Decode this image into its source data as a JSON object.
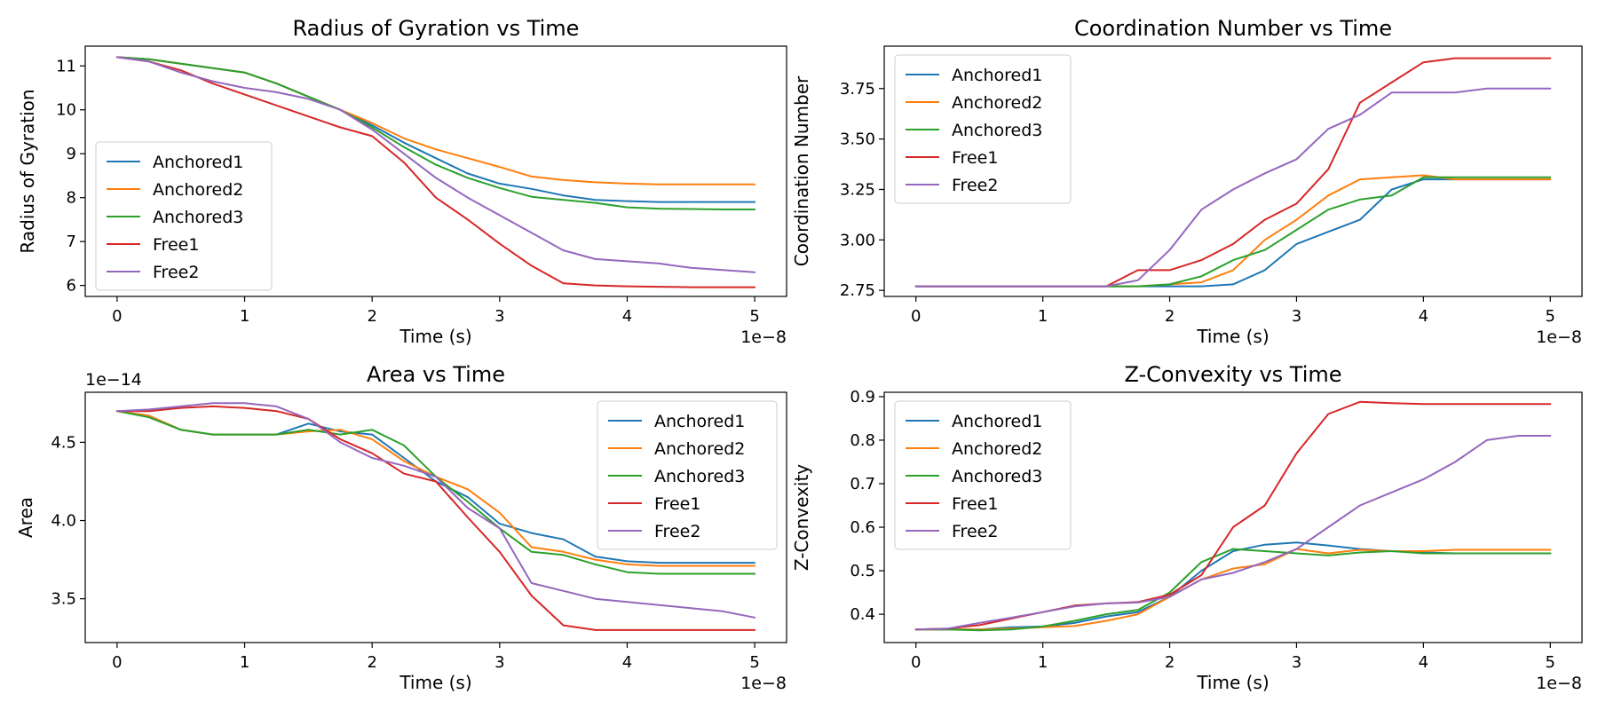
{
  "series_colors": {
    "Anchored1": "#1f77b4",
    "Anchored2": "#ff7f0e",
    "Anchored3": "#2ca02c",
    "Free1": "#d62728",
    "Free2": "#9467bd"
  },
  "chart_data": [
    {
      "type": "line",
      "title": "Radius of Gyration vs Time",
      "xlabel": "Time (s)",
      "ylabel": "Radius of Gyration",
      "x_offset_label": "1e−8",
      "y_offset_label": "",
      "xlim": [
        -0.25,
        5.25
      ],
      "ylim": [
        5.75,
        11.45
      ],
      "xticks": [
        0,
        1,
        2,
        3,
        4,
        5
      ],
      "xticklabels": [
        "0",
        "1",
        "2",
        "3",
        "4",
        "5"
      ],
      "yticks": [
        6,
        7,
        8,
        9,
        10,
        11
      ],
      "yticklabels": [
        "6",
        "7",
        "8",
        "9",
        "10",
        "11"
      ],
      "legend_position": "center-left",
      "grid": false,
      "x": [
        0,
        0.25,
        0.5,
        0.75,
        1.0,
        1.25,
        1.5,
        1.75,
        2.0,
        2.25,
        2.5,
        2.75,
        3.0,
        3.25,
        3.5,
        3.75,
        4.0,
        4.25,
        4.5,
        4.75,
        5.0
      ],
      "series": [
        {
          "name": "Anchored1",
          "values": [
            11.2,
            11.15,
            11.05,
            10.95,
            10.85,
            10.6,
            10.3,
            10.0,
            9.65,
            9.25,
            8.9,
            8.55,
            8.32,
            8.2,
            8.05,
            7.95,
            7.92,
            7.9,
            7.9,
            7.9,
            7.9
          ]
        },
        {
          "name": "Anchored2",
          "values": [
            11.2,
            11.15,
            11.05,
            10.95,
            10.85,
            10.6,
            10.3,
            10.0,
            9.7,
            9.35,
            9.1,
            8.9,
            8.7,
            8.48,
            8.4,
            8.35,
            8.32,
            8.3,
            8.3,
            8.3,
            8.3
          ]
        },
        {
          "name": "Anchored3",
          "values": [
            11.2,
            11.15,
            11.05,
            10.95,
            10.85,
            10.6,
            10.3,
            10.0,
            9.6,
            9.15,
            8.75,
            8.45,
            8.22,
            8.02,
            7.95,
            7.88,
            7.78,
            7.75,
            7.74,
            7.73,
            7.73
          ]
        },
        {
          "name": "Free1",
          "values": [
            11.2,
            11.1,
            10.9,
            10.6,
            10.35,
            10.1,
            9.85,
            9.6,
            9.4,
            8.8,
            8.0,
            7.5,
            6.95,
            6.45,
            6.05,
            6.0,
            5.98,
            5.97,
            5.96,
            5.96,
            5.96
          ]
        },
        {
          "name": "Free2",
          "values": [
            11.2,
            11.1,
            10.85,
            10.65,
            10.5,
            10.4,
            10.25,
            10.0,
            9.55,
            9.0,
            8.45,
            8.0,
            7.6,
            7.2,
            6.8,
            6.6,
            6.55,
            6.5,
            6.4,
            6.35,
            6.3
          ]
        }
      ]
    },
    {
      "type": "line",
      "title": "Coordination Number vs Time",
      "xlabel": "Time (s)",
      "ylabel": "Coordination Number",
      "x_offset_label": "1e−8",
      "y_offset_label": "",
      "xlim": [
        -0.25,
        5.25
      ],
      "ylim": [
        2.72,
        3.96
      ],
      "xticks": [
        0,
        1,
        2,
        3,
        4,
        5
      ],
      "xticklabels": [
        "0",
        "1",
        "2",
        "3",
        "4",
        "5"
      ],
      "yticks": [
        2.75,
        3.0,
        3.25,
        3.5,
        3.75
      ],
      "yticklabels": [
        "2.75",
        "3.00",
        "3.25",
        "3.50",
        "3.75"
      ],
      "legend_position": "upper-left",
      "grid": false,
      "x": [
        0,
        1.5,
        1.75,
        2.0,
        2.25,
        2.5,
        2.75,
        3.0,
        3.25,
        3.5,
        3.75,
        4.0,
        4.25,
        4.5,
        5.0
      ],
      "series": [
        {
          "name": "Anchored1",
          "values": [
            2.77,
            2.77,
            2.77,
            2.77,
            2.77,
            2.78,
            2.85,
            2.98,
            3.04,
            3.1,
            3.25,
            3.3,
            3.3,
            3.3,
            3.3
          ]
        },
        {
          "name": "Anchored2",
          "values": [
            2.77,
            2.77,
            2.77,
            2.78,
            2.79,
            2.85,
            3.0,
            3.1,
            3.22,
            3.3,
            3.31,
            3.32,
            3.3,
            3.3,
            3.3
          ]
        },
        {
          "name": "Anchored3",
          "values": [
            2.77,
            2.77,
            2.77,
            2.78,
            2.82,
            2.9,
            2.95,
            3.05,
            3.15,
            3.2,
            3.22,
            3.31,
            3.31,
            3.31,
            3.31
          ]
        },
        {
          "name": "Free1",
          "values": [
            2.77,
            2.77,
            2.85,
            2.85,
            2.9,
            2.98,
            3.1,
            3.18,
            3.35,
            3.68,
            3.78,
            3.88,
            3.9,
            3.9,
            3.9
          ]
        },
        {
          "name": "Free2",
          "values": [
            2.77,
            2.77,
            2.8,
            2.95,
            3.15,
            3.25,
            3.33,
            3.4,
            3.55,
            3.62,
            3.73,
            3.73,
            3.73,
            3.75,
            3.75
          ]
        }
      ]
    },
    {
      "type": "line",
      "title": "Area vs Time",
      "xlabel": "Time (s)",
      "ylabel": "Area",
      "x_offset_label": "1e−8",
      "y_offset_label": "1e−14",
      "xlim": [
        -0.25,
        5.25
      ],
      "ylim": [
        3.22,
        4.82
      ],
      "xticks": [
        0,
        1,
        2,
        3,
        4,
        5
      ],
      "xticklabels": [
        "0",
        "1",
        "2",
        "3",
        "4",
        "5"
      ],
      "yticks": [
        3.5,
        4.0,
        4.5
      ],
      "yticklabels": [
        "3.5",
        "4.0",
        "4.5"
      ],
      "legend_position": "upper-right",
      "grid": false,
      "x": [
        0,
        0.25,
        0.5,
        0.75,
        1.0,
        1.25,
        1.5,
        1.75,
        2.0,
        2.25,
        2.5,
        2.75,
        3.0,
        3.25,
        3.5,
        3.75,
        4.0,
        4.25,
        4.5,
        4.75,
        5.0
      ],
      "series": [
        {
          "name": "Anchored1",
          "values": [
            4.7,
            4.67,
            4.58,
            4.55,
            4.55,
            4.55,
            4.62,
            4.57,
            4.55,
            4.4,
            4.25,
            4.15,
            3.98,
            3.92,
            3.88,
            3.77,
            3.74,
            3.73,
            3.73,
            3.73,
            3.73
          ]
        },
        {
          "name": "Anchored2",
          "values": [
            4.7,
            4.67,
            4.58,
            4.55,
            4.55,
            4.55,
            4.57,
            4.58,
            4.52,
            4.38,
            4.28,
            4.2,
            4.05,
            3.83,
            3.8,
            3.75,
            3.72,
            3.71,
            3.71,
            3.71,
            3.71
          ]
        },
        {
          "name": "Anchored3",
          "values": [
            4.7,
            4.66,
            4.58,
            4.55,
            4.55,
            4.55,
            4.58,
            4.55,
            4.58,
            4.48,
            4.28,
            4.12,
            3.95,
            3.8,
            3.78,
            3.72,
            3.67,
            3.66,
            3.66,
            3.66,
            3.66
          ]
        },
        {
          "name": "Free1",
          "values": [
            4.7,
            4.7,
            4.72,
            4.73,
            4.72,
            4.7,
            4.65,
            4.52,
            4.43,
            4.3,
            4.25,
            4.02,
            3.8,
            3.52,
            3.33,
            3.3,
            3.3,
            3.3,
            3.3,
            3.3,
            3.3
          ]
        },
        {
          "name": "Free2",
          "values": [
            4.7,
            4.71,
            4.73,
            4.75,
            4.75,
            4.73,
            4.65,
            4.5,
            4.4,
            4.35,
            4.28,
            4.08,
            3.95,
            3.6,
            3.55,
            3.5,
            3.48,
            3.46,
            3.44,
            3.42,
            3.38
          ]
        }
      ]
    },
    {
      "type": "line",
      "title": "Z-Convexity vs Time",
      "xlabel": "Time (s)",
      "ylabel": "Z-Convexity",
      "x_offset_label": "1e−8",
      "y_offset_label": "",
      "xlim": [
        -0.25,
        5.25
      ],
      "ylim": [
        0.335,
        0.91
      ],
      "xticks": [
        0,
        1,
        2,
        3,
        4,
        5
      ],
      "xticklabels": [
        "0",
        "1",
        "2",
        "3",
        "4",
        "5"
      ],
      "yticks": [
        0.4,
        0.5,
        0.6,
        0.7,
        0.8,
        0.9
      ],
      "yticklabels": [
        "0.4",
        "0.5",
        "0.6",
        "0.7",
        "0.8",
        "0.9"
      ],
      "legend_position": "upper-left",
      "grid": false,
      "x": [
        0,
        0.25,
        0.5,
        0.75,
        1.0,
        1.25,
        1.5,
        1.75,
        2.0,
        2.25,
        2.5,
        2.75,
        3.0,
        3.25,
        3.5,
        3.75,
        4.0,
        4.25,
        4.5,
        4.75,
        5.0
      ],
      "series": [
        {
          "name": "Anchored1",
          "values": [
            0.365,
            0.365,
            0.365,
            0.37,
            0.372,
            0.38,
            0.395,
            0.405,
            0.44,
            0.5,
            0.545,
            0.56,
            0.565,
            0.558,
            0.55,
            0.545,
            0.542,
            0.54,
            0.54,
            0.54,
            0.54
          ]
        },
        {
          "name": "Anchored2",
          "values": [
            0.365,
            0.365,
            0.365,
            0.367,
            0.37,
            0.373,
            0.385,
            0.4,
            0.44,
            0.48,
            0.505,
            0.515,
            0.55,
            0.54,
            0.548,
            0.545,
            0.545,
            0.548,
            0.548,
            0.548,
            0.548
          ]
        },
        {
          "name": "Anchored3",
          "values": [
            0.365,
            0.365,
            0.363,
            0.365,
            0.372,
            0.385,
            0.4,
            0.41,
            0.45,
            0.52,
            0.55,
            0.545,
            0.54,
            0.535,
            0.542,
            0.545,
            0.54,
            0.54,
            0.54,
            0.54,
            0.54
          ]
        },
        {
          "name": "Free1",
          "values": [
            0.365,
            0.367,
            0.375,
            0.39,
            0.405,
            0.42,
            0.425,
            0.428,
            0.445,
            0.49,
            0.6,
            0.65,
            0.77,
            0.86,
            0.888,
            0.885,
            0.883,
            0.883,
            0.883,
            0.883,
            0.883
          ]
        },
        {
          "name": "Free2",
          "values": [
            0.365,
            0.367,
            0.38,
            0.392,
            0.405,
            0.418,
            0.425,
            0.427,
            0.44,
            0.48,
            0.495,
            0.52,
            0.55,
            0.6,
            0.65,
            0.68,
            0.71,
            0.75,
            0.8,
            0.81,
            0.81
          ]
        }
      ]
    }
  ]
}
